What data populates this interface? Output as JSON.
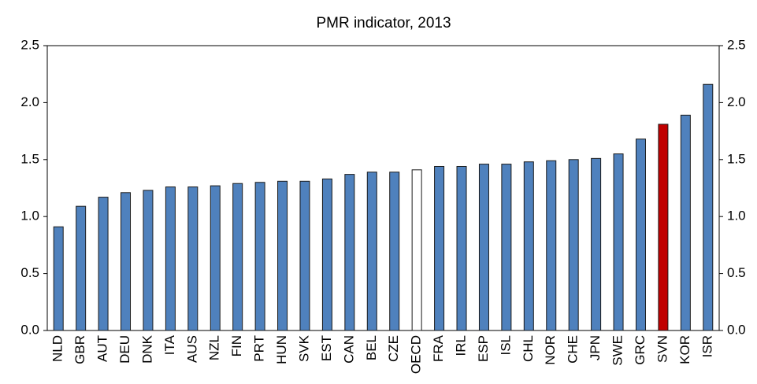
{
  "chart_data": {
    "type": "bar",
    "title": "PMR indicator, 2013",
    "categories": [
      "NLD",
      "GBR",
      "AUT",
      "DEU",
      "DNK",
      "ITA",
      "AUS",
      "NZL",
      "FIN",
      "PRT",
      "HUN",
      "SVK",
      "EST",
      "CAN",
      "BEL",
      "CZE",
      "OECD",
      "FRA",
      "IRL",
      "ESP",
      "ISL",
      "CHL",
      "NOR",
      "CHE",
      "JPN",
      "SWE",
      "GRC",
      "SVN",
      "KOR",
      "ISR"
    ],
    "values": [
      0.91,
      1.09,
      1.17,
      1.21,
      1.23,
      1.26,
      1.26,
      1.27,
      1.29,
      1.3,
      1.31,
      1.31,
      1.33,
      1.37,
      1.39,
      1.39,
      1.41,
      1.44,
      1.44,
      1.46,
      1.46,
      1.48,
      1.49,
      1.5,
      1.51,
      1.55,
      1.68,
      1.81,
      1.89,
      2.16
    ],
    "colors": [
      "#4f81bd",
      "#4f81bd",
      "#4f81bd",
      "#4f81bd",
      "#4f81bd",
      "#4f81bd",
      "#4f81bd",
      "#4f81bd",
      "#4f81bd",
      "#4f81bd",
      "#4f81bd",
      "#4f81bd",
      "#4f81bd",
      "#4f81bd",
      "#4f81bd",
      "#4f81bd",
      "#ffffff",
      "#4f81bd",
      "#4f81bd",
      "#4f81bd",
      "#4f81bd",
      "#4f81bd",
      "#4f81bd",
      "#4f81bd",
      "#4f81bd",
      "#4f81bd",
      "#4f81bd",
      "#c00000",
      "#4f81bd",
      "#4f81bd"
    ],
    "ylim": [
      0,
      2.5
    ],
    "yticks": [
      {
        "value": 0,
        "label": "0.0"
      },
      0.5,
      {
        "value": 1,
        "label": "1.0"
      },
      1.5,
      {
        "value": 2,
        "label": "2.0"
      },
      2.5
    ],
    "y2lim": [
      0,
      2.5
    ],
    "y2ticks": [
      {
        "value": 0,
        "label": "0.0"
      },
      0.5,
      {
        "value": 1,
        "label": "1.0"
      },
      1.5,
      {
        "value": 2,
        "label": "2.0"
      },
      2.5
    ],
    "grid": false
  }
}
